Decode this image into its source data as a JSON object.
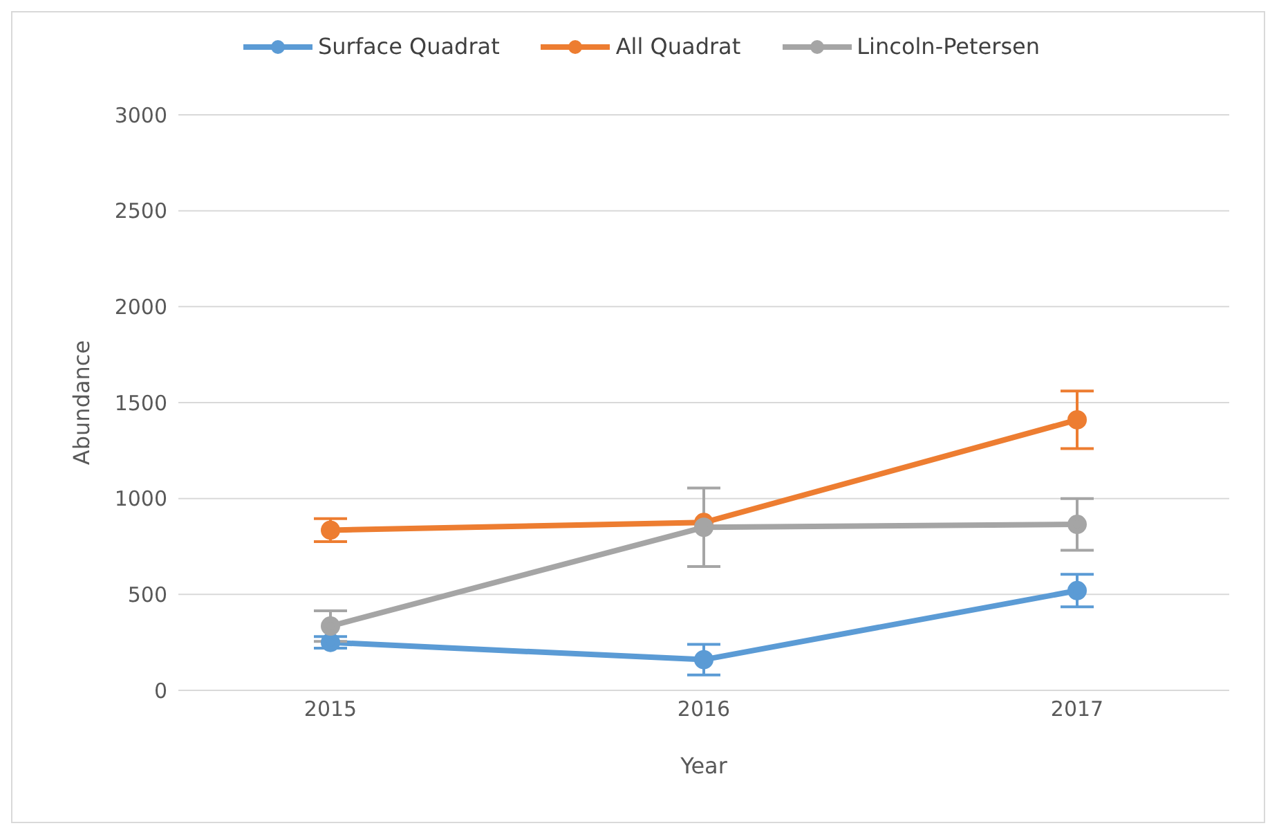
{
  "chart_data": {
    "type": "line",
    "xlabel": "Year",
    "ylabel": "Abundance",
    "categories": [
      "2015",
      "2016",
      "2017"
    ],
    "series": [
      {
        "name": "Surface Quadrat",
        "color": "#5b9bd5",
        "values": [
          250,
          160,
          520
        ],
        "errors": [
          30,
          80,
          85
        ]
      },
      {
        "name": "All Quadrat",
        "color": "#ed7d31",
        "values": [
          835,
          875,
          1410
        ],
        "errors": [
          60,
          null,
          150
        ]
      },
      {
        "name": "Lincoln-Petersen",
        "color": "#a5a5a5",
        "values": [
          335,
          850,
          865
        ],
        "errors": [
          80,
          205,
          135
        ]
      }
    ],
    "ylim": [
      0,
      3000
    ],
    "yticks": [
      0,
      500,
      1000,
      1500,
      2000,
      2500,
      3000
    ],
    "grid": "y",
    "legend": "top",
    "marker": "circle",
    "line_style": "solid"
  }
}
